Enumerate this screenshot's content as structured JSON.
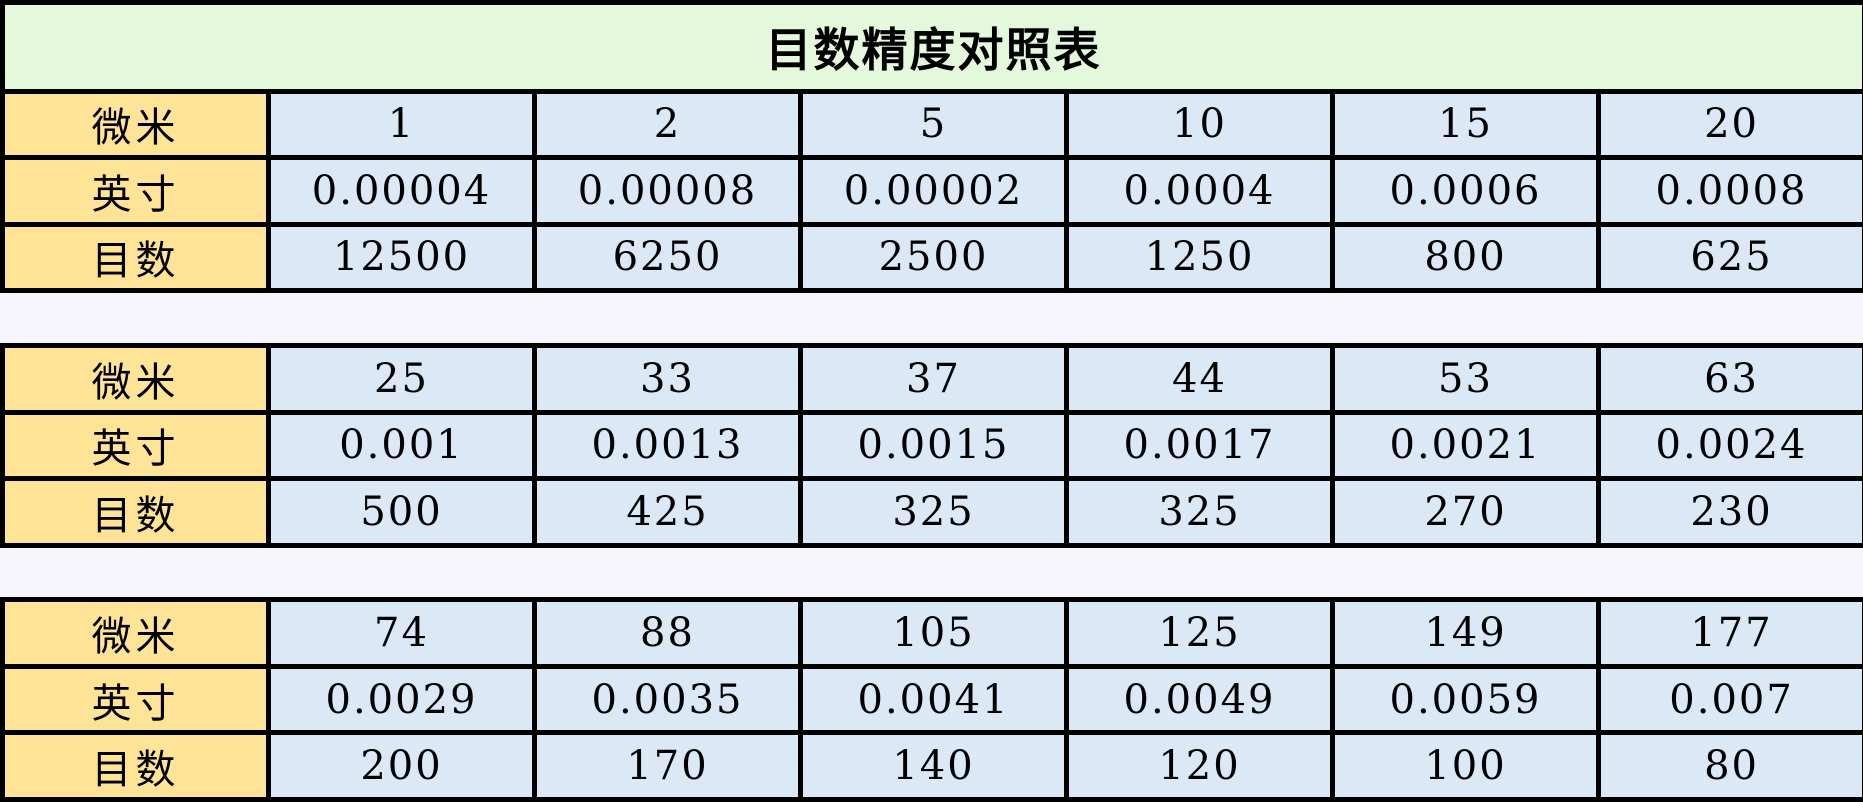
{
  "chart_data": {
    "type": "table",
    "title": "目数精度对照表",
    "row_labels": [
      "微米",
      "英寸",
      "目数"
    ],
    "columns_per_block": 6,
    "blocks": [
      {
        "rows": [
          {
            "label": "微米",
            "values": [
              "1",
              "2",
              "5",
              "10",
              "15",
              "20"
            ]
          },
          {
            "label": "英寸",
            "values": [
              "0.00004",
              "0.00008",
              "0.00002",
              "0.0004",
              "0.0006",
              "0.0008"
            ]
          },
          {
            "label": "目数",
            "values": [
              "12500",
              "6250",
              "2500",
              "1250",
              "800",
              "625"
            ]
          }
        ]
      },
      {
        "rows": [
          {
            "label": "微米",
            "values": [
              "25",
              "33",
              "37",
              "44",
              "53",
              "63"
            ]
          },
          {
            "label": "英寸",
            "values": [
              "0.001",
              "0.0013",
              "0.0015",
              "0.0017",
              "0.0021",
              "0.0024"
            ]
          },
          {
            "label": "目数",
            "values": [
              "500",
              "425",
              "325",
              "325",
              "270",
              "230"
            ]
          }
        ]
      },
      {
        "rows": [
          {
            "label": "微米",
            "values": [
              "74",
              "88",
              "105",
              "125",
              "149",
              "177"
            ]
          },
          {
            "label": "英寸",
            "values": [
              "0.0029",
              "0.0035",
              "0.0041",
              "0.0049",
              "0.0059",
              "0.007"
            ]
          },
          {
            "label": "目数",
            "values": [
              "200",
              "170",
              "140",
              "120",
              "100",
              "80"
            ]
          }
        ]
      }
    ],
    "layout": {
      "grid": "on",
      "title_position": "top-merged-row",
      "spacer_rows_between_blocks": 2
    },
    "colors": {
      "title_bg": "#E4F8DB",
      "row_header_bg": "#FFE396",
      "value_cell_bg": "#DBE9F6",
      "spacer_bg": "#F5F5FB",
      "border": "#000000",
      "text": "#000000"
    }
  }
}
